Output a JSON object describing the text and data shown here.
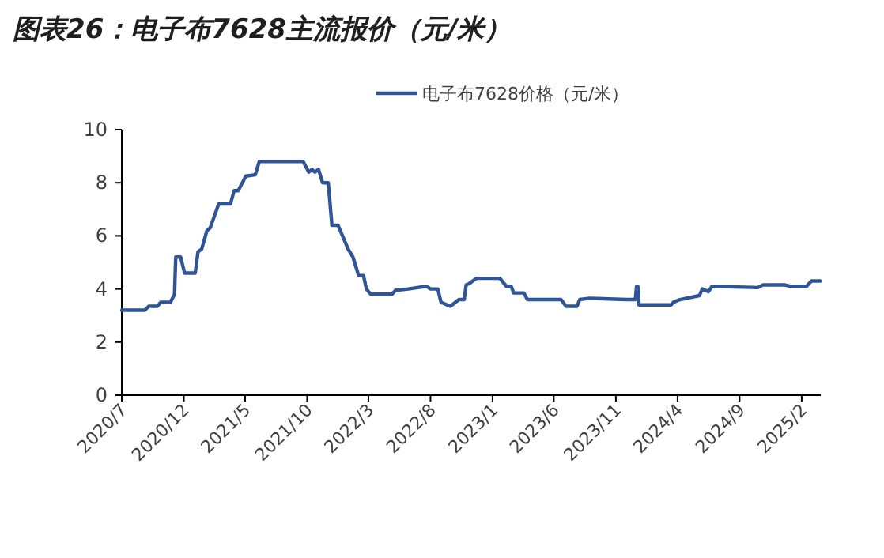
{
  "chart_data": {
    "type": "line",
    "title": "图表26：电子布7628主流报价（元/米）",
    "x": [
      "2020-07-01",
      "2020-08-27",
      "2020-09-06",
      "2020-09-27",
      "2020-10-05",
      "2020-10-29",
      "2020-11-08",
      "2020-11-11",
      "2020-11-23",
      "2020-12-03",
      "2020-12-29",
      "2021-01-05",
      "2021-01-14",
      "2021-01-27",
      "2021-02-04",
      "2021-02-25",
      "2021-03-26",
      "2021-04-04",
      "2021-04-14",
      "2021-05-03",
      "2021-05-26",
      "2021-06-05",
      "2021-09-21",
      "2021-10-05",
      "2021-10-13",
      "2021-10-20",
      "2021-10-29",
      "2021-11-08",
      "2021-11-22",
      "2021-12-01",
      "2021-12-16",
      "2022-01-10",
      "2022-01-22",
      "2022-02-05",
      "2022-02-17",
      "2022-02-24",
      "2022-03-07",
      "2022-04-28",
      "2022-05-07",
      "2022-06-07",
      "2022-07-22",
      "2022-08-01",
      "2022-08-19",
      "2022-08-27",
      "2022-09-19",
      "2022-10-10",
      "2022-10-23",
      "2022-10-28",
      "2022-11-04",
      "2022-11-22",
      "2023-01-19",
      "2023-02-04",
      "2023-02-16",
      "2023-02-22",
      "2023-03-19",
      "2023-03-28",
      "2023-06-19",
      "2023-07-01",
      "2023-07-28",
      "2023-08-04",
      "2023-08-28",
      "2023-11-28",
      "2023-12-19",
      "2023-12-22",
      "2023-12-25",
      "2023-12-28",
      "2024-03-16",
      "2024-03-22",
      "2024-04-07",
      "2024-05-25",
      "2024-06-01",
      "2024-06-16",
      "2024-06-25",
      "2024-10-16",
      "2024-10-28",
      "2024-12-22",
      "2025-01-04",
      "2025-02-13",
      "2025-02-25",
      "2025-03-19"
    ],
    "series": [
      {
        "name": "电子布7628价格（元/米）",
        "color": "#2f5597",
        "values": [
          3.2,
          3.2,
          3.35,
          3.35,
          3.5,
          3.5,
          3.8,
          5.2,
          5.2,
          4.6,
          4.6,
          5.4,
          5.5,
          6.2,
          6.3,
          7.2,
          7.2,
          7.7,
          7.7,
          8.25,
          8.3,
          8.8,
          8.8,
          8.4,
          8.5,
          8.4,
          8.5,
          8.0,
          8.0,
          6.4,
          6.4,
          5.5,
          5.2,
          4.5,
          4.5,
          4.0,
          3.8,
          3.8,
          3.95,
          4.0,
          4.1,
          4.0,
          4.0,
          3.5,
          3.35,
          3.6,
          3.6,
          4.15,
          4.2,
          4.4,
          4.4,
          4.1,
          4.1,
          3.85,
          3.85,
          3.6,
          3.6,
          3.35,
          3.35,
          3.6,
          3.65,
          3.6,
          3.6,
          4.1,
          4.1,
          3.4,
          3.4,
          3.5,
          3.6,
          3.75,
          4.0,
          3.9,
          4.1,
          4.05,
          4.15,
          4.15,
          4.1,
          4.1,
          4.3,
          4.3
        ]
      }
    ],
    "xlim": [
      "2020-07-01",
      "2025-03-20"
    ],
    "xticks": [
      {
        "value": "2020-07",
        "label": "2020/7"
      },
      {
        "value": "2020-12",
        "label": "2020/12"
      },
      {
        "value": "2021-05",
        "label": "2021/5"
      },
      {
        "value": "2021-10",
        "label": "2021/10"
      },
      {
        "value": "2022-03",
        "label": "2022/3"
      },
      {
        "value": "2022-08",
        "label": "2022/8"
      },
      {
        "value": "2023-01",
        "label": "2023/1"
      },
      {
        "value": "2023-06",
        "label": "2023/6"
      },
      {
        "value": "2023-11",
        "label": "2023/11"
      },
      {
        "value": "2024-04",
        "label": "2024/4"
      },
      {
        "value": "2024-09",
        "label": "2024/9"
      },
      {
        "value": "2025-02",
        "label": "2025/2"
      }
    ],
    "ylim": [
      0,
      10
    ],
    "yticks": [
      0,
      2,
      4,
      6,
      8,
      10
    ],
    "legend": "top",
    "marker": "none",
    "line_style": "solid"
  }
}
